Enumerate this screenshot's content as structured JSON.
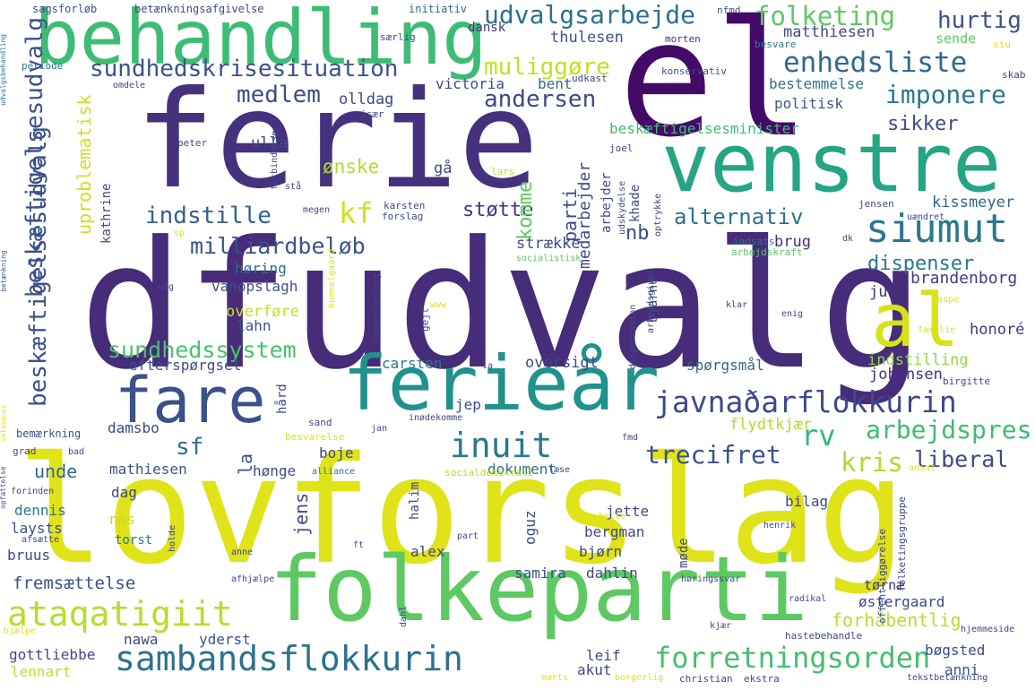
{
  "words": [
    {
      "text": "lovforslag",
      "color": "#dfe318"
    },
    {
      "text": "dfudvalg",
      "color": "#472c7a"
    },
    {
      "text": "ferie",
      "color": "#46317e"
    },
    {
      "text": "el",
      "color": "#440a68"
    },
    {
      "text": "behandling",
      "color": "#3ebc74"
    },
    {
      "text": "venstre",
      "color": "#25a584"
    },
    {
      "text": "folkeparti",
      "color": "#5ec962"
    },
    {
      "text": "ferieår",
      "color": "#21918c"
    },
    {
      "text": "fare",
      "color": "#3b518b"
    },
    {
      "text": "al",
      "color": "#d8e219"
    },
    {
      "text": "sambandsflokkurin",
      "color": "#2c728e"
    },
    {
      "text": "javnaðarflokkurin",
      "color": "#3e4a89"
    },
    {
      "text": "siumut",
      "color": "#2a788e"
    },
    {
      "text": "udvalgsarbejde",
      "color": "#2c718e"
    },
    {
      "text": "folketing",
      "color": "#5ec962"
    },
    {
      "text": "enhedsliste",
      "color": "#31688e"
    },
    {
      "text": "sundhedskrisesituation",
      "color": "#3b528b"
    },
    {
      "text": "inuit",
      "color": "#2a788e"
    },
    {
      "text": "ataqatigiit",
      "color": "#b5de2b"
    },
    {
      "text": "forretningsorden",
      "color": "#44bf70"
    },
    {
      "text": "arbejdspres",
      "color": "#3dbc74"
    },
    {
      "text": "imponere",
      "color": "#2a778e"
    },
    {
      "text": "hurtig",
      "color": "#3b528b"
    },
    {
      "text": "medlem",
      "color": "#3e4c8a"
    },
    {
      "text": "andersen",
      "color": "#3f4889"
    },
    {
      "text": "muliggøre",
      "color": "#c2df23"
    },
    {
      "text": "indstille",
      "color": "#355f8d"
    },
    {
      "text": "milliardbeløb",
      "color": "#3b528b"
    },
    {
      "text": "alternativ",
      "color": "#2c728e"
    },
    {
      "text": "sundhedssystem",
      "color": "#4ac16d"
    },
    {
      "text": "trecifret",
      "color": "#3b528b"
    },
    {
      "text": "kris",
      "color": "#addc30"
    },
    {
      "text": "liberal",
      "color": "#3e4989"
    },
    {
      "text": "rv",
      "color": "#35b779"
    },
    {
      "text": "sf",
      "color": "#2d708e"
    },
    {
      "text": "kf",
      "color": "#cde11d"
    },
    {
      "text": "støtte",
      "color": "#46327e"
    },
    {
      "text": "nb",
      "color": "#3e4a89"
    },
    {
      "text": "sikker",
      "color": "#3e4c8a"
    },
    {
      "text": "politisk",
      "color": "#38598c"
    },
    {
      "text": "bestemmelse",
      "color": "#2c738e"
    },
    {
      "text": "beskæftigelsesminister",
      "color": "#3dbc74"
    },
    {
      "text": "kissmeyer",
      "color": "#32648e"
    },
    {
      "text": "dispenser",
      "color": "#2a778e"
    },
    {
      "text": "brandenborg",
      "color": "#443983"
    },
    {
      "text": "juhl",
      "color": "#472f7d"
    },
    {
      "text": "honoré",
      "color": "#463480"
    },
    {
      "text": "indstilling",
      "color": "#95d840"
    },
    {
      "text": "johansen",
      "color": "#46327e"
    },
    {
      "text": "spørgsmål",
      "color": "#31678e"
    },
    {
      "text": "oversigt",
      "color": "#3f4788"
    },
    {
      "text": "carsten",
      "color": "#2a778e"
    },
    {
      "text": "efterspørgsel",
      "color": "#3d4d8a"
    },
    {
      "text": "vanopslagh",
      "color": "#3b528b"
    },
    {
      "text": "lahn",
      "color": "#3b528b"
    },
    {
      "text": "høring",
      "color": "#2e6d8e"
    },
    {
      "text": "overføre",
      "color": "#c8e020"
    },
    {
      "text": "ulla",
      "color": "#3e4989"
    },
    {
      "text": "olldag",
      "color": "#3e4a89"
    },
    {
      "text": "victoria",
      "color": "#3d4d8a"
    },
    {
      "text": "bent",
      "color": "#2f6b8e"
    },
    {
      "text": "dansk",
      "color": "#46327e"
    },
    {
      "text": "thulesen",
      "color": "#3b528b"
    },
    {
      "text": "matthiesen",
      "color": "#3e4a89"
    },
    {
      "text": "sende",
      "color": "#5ec962"
    },
    {
      "text": "ønske",
      "color": "#addc30"
    },
    {
      "text": "gå",
      "color": "#3e4989"
    },
    {
      "text": "strække",
      "color": "#3e4989"
    },
    {
      "text": "brug",
      "color": "#472f7d"
    },
    {
      "text": "flydtkjær",
      "color": "#addc30"
    },
    {
      "text": "tørnæ",
      "color": "#46337f"
    },
    {
      "text": "østergaard",
      "color": "#3e4989"
    },
    {
      "text": "bøgsted",
      "color": "#3e4989"
    },
    {
      "text": "anni",
      "color": "#3b528b"
    },
    {
      "text": "akut",
      "color": "#3e4989"
    },
    {
      "text": "leif",
      "color": "#3e4989"
    },
    {
      "text": "yderst",
      "color": "#3b528b"
    },
    {
      "text": "nawa",
      "color": "#3e4989"
    },
    {
      "text": "gottliebbe",
      "color": "#3e4989"
    },
    {
      "text": "lennart",
      "color": "#bddf26"
    },
    {
      "text": "fremsættelse",
      "color": "#3b528b"
    },
    {
      "text": "bruus",
      "color": "#3e4989"
    },
    {
      "text": "laysts",
      "color": "#3b528b"
    },
    {
      "text": "dennis",
      "color": "#2a788e"
    },
    {
      "text": "dag",
      "color": "#3e4989"
    },
    {
      "text": "mathiesen",
      "color": "#3b528b"
    },
    {
      "text": "unde",
      "color": "#32658e"
    },
    {
      "text": "damsbo",
      "color": "#3e4989"
    },
    {
      "text": "hønge",
      "color": "#3e4989"
    },
    {
      "text": "boje",
      "color": "#3e4989"
    },
    {
      "text": "jep",
      "color": "#3e4989"
    },
    {
      "text": "dokument",
      "color": "#2c728e"
    },
    {
      "text": "bilag",
      "color": "#3e4989"
    },
    {
      "text": "jette",
      "color": "#3e4989"
    },
    {
      "text": "bergman",
      "color": "#3e4989"
    },
    {
      "text": "bjørn",
      "color": "#3e4989"
    },
    {
      "text": "alex",
      "color": "#3e4989"
    },
    {
      "text": "samira",
      "color": "#3e4989"
    },
    {
      "text": "dahlin",
      "color": "#3e4989"
    },
    {
      "text": "forhåbentlig",
      "color": "#b5de2b"
    },
    {
      "text": "nas",
      "color": "#bddf26"
    },
    {
      "text": "torst",
      "color": "#2c728e"
    },
    {
      "text": "sagsforløb",
      "color": "#3b528b"
    },
    {
      "text": "betænkningsafgivelse",
      "color": "#3e4989"
    },
    {
      "text": "initiativ",
      "color": "#31688e"
    },
    {
      "text": "nfmd",
      "color": "#3b528b"
    },
    {
      "text": "morten",
      "color": "#46327e"
    },
    {
      "text": "besvare",
      "color": "#2a788e"
    },
    {
      "text": "siu",
      "color": "#dfe318"
    },
    {
      "text": "skab",
      "color": "#3e4989"
    },
    {
      "text": "konservativ",
      "color": "#3b528b"
    },
    {
      "text": "udkast",
      "color": "#3e4989"
    },
    {
      "text": "særlig",
      "color": "#3e4989"
    },
    {
      "text": "periode",
      "color": "#2a788e"
    },
    {
      "text": "omdele",
      "color": "#3e4989"
    },
    {
      "text": "især",
      "color": "#3e4989"
    },
    {
      "text": "peter",
      "color": "#3e4989"
    },
    {
      "text": "joel",
      "color": "#3e4989"
    },
    {
      "text": "lars",
      "color": "#bddf26"
    },
    {
      "text": "stå",
      "color": "#3e4989"
    },
    {
      "text": "karsten",
      "color": "#3e4989"
    },
    {
      "text": "forslag",
      "color": "#3e4989"
    },
    {
      "text": "megen",
      "color": "#3e4989"
    },
    {
      "text": "jensen",
      "color": "#3e4989"
    },
    {
      "text": "uændret",
      "color": "#3e4989"
    },
    {
      "text": "indsats",
      "color": "#2a788e"
    },
    {
      "text": "arbejdskraft",
      "color": "#5ec962"
    },
    {
      "text": "socialistisk",
      "color": "#5ec962"
    },
    {
      "text": "sp",
      "color": "#dfe318"
    },
    {
      "text": "ufg",
      "color": "#3e4989"
    },
    {
      "text": "www",
      "color": "#dfe318"
    },
    {
      "text": "enig",
      "color": "#3e4989"
    },
    {
      "text": "klar",
      "color": "#3e4989"
    },
    {
      "text": "kaspe",
      "color": "#dfe318"
    },
    {
      "text": "familie",
      "color": "#dfe318"
    },
    {
      "text": "bemærkning",
      "color": "#3b528b"
    },
    {
      "text": "ia",
      "color": "#3e4989"
    },
    {
      "text": "sand",
      "color": "#3e4989"
    },
    {
      "text": "jan",
      "color": "#3e4989"
    },
    {
      "text": "inødekomme",
      "color": "#3e4989"
    },
    {
      "text": "birgitte",
      "color": "#3e4989"
    },
    {
      "text": "grad",
      "color": "#3e4989"
    },
    {
      "text": "bad",
      "color": "#3e4989"
    },
    {
      "text": "besvarelse",
      "color": "#dfe318"
    },
    {
      "text": "alliance",
      "color": "#2c728e"
    },
    {
      "text": "socialdemokrati",
      "color": "#b5de2b"
    },
    {
      "text": "læse",
      "color": "#3e4989"
    },
    {
      "text": "ansat",
      "color": "#dfe318"
    },
    {
      "text": "fmd",
      "color": "#3e4989"
    },
    {
      "text": "forinden",
      "color": "#3e4989"
    },
    {
      "text": "afsætte",
      "color": "#3e4989"
    },
    {
      "text": "henrik",
      "color": "#3e4989"
    },
    {
      "text": "helle",
      "color": "#dfe318"
    },
    {
      "text": "part",
      "color": "#3e4989"
    },
    {
      "text": "anne",
      "color": "#3e4989"
    },
    {
      "text": "ft",
      "color": "#3e4989"
    },
    {
      "text": "afhjælpe",
      "color": "#3e4989"
    },
    {
      "text": "høringssvar",
      "color": "#3e4989"
    },
    {
      "text": "radikal",
      "color": "#3e4989"
    },
    {
      "text": "hjælpe",
      "color": "#dfe318"
    },
    {
      "text": "kjær",
      "color": "#3e4989"
    },
    {
      "text": "hastebehandle",
      "color": "#3e4989"
    },
    {
      "text": "hjemmeside",
      "color": "#3e4989"
    },
    {
      "text": "marts",
      "color": "#dfe318"
    },
    {
      "text": "borgerlig",
      "color": "#dfe318"
    },
    {
      "text": "christian",
      "color": "#3e4989"
    },
    {
      "text": "ekstra",
      "color": "#3e4989"
    },
    {
      "text": "tekstbetænkning",
      "color": "#3e4989"
    },
    {
      "text": "udvalgsbehandling",
      "color": "#2a788e"
    },
    {
      "text": "betænkning",
      "color": "#3b528b"
    },
    {
      "text": "beskæftigelsesudvalg",
      "color": "#3b528b"
    },
    {
      "text": "uproblematisk",
      "color": "#cde11d"
    },
    {
      "text": "beskæftigelsesudvalg",
      "color": "#3b528b"
    },
    {
      "text": "opfattelse",
      "color": "#3e4989"
    },
    {
      "text": "velasquez",
      "color": "#dfe318"
    },
    {
      "text": "jens",
      "color": "#3e4989"
    },
    {
      "text": "la",
      "color": "#3b528b"
    },
    {
      "text": "hård",
      "color": "#3e4989"
    },
    {
      "text": "halim",
      "color": "#3e4989"
    },
    {
      "text": "gejl",
      "color": "#3e4989"
    },
    {
      "text": "oguz",
      "color": "#3e4989"
    },
    {
      "text": "møde",
      "color": "#3e4989"
    },
    {
      "text": "komme",
      "color": "#5ec962"
    },
    {
      "text": "parti",
      "color": "#3e4989"
    },
    {
      "text": "medarbejder",
      "color": "#3e4989"
    },
    {
      "text": "arbejder",
      "color": "#3e4989"
    },
    {
      "text": "khade",
      "color": "#3e4989"
    },
    {
      "text": "bjarne",
      "color": "#3e4989"
    },
    {
      "text": "kathrine",
      "color": "#3e4989"
    },
    {
      "text": "forbindelse",
      "color": "#3e4989"
    },
    {
      "text": "hummelgaard",
      "color": "#dfe318"
    },
    {
      "text": "sammensætning",
      "color": "#3e4989"
    },
    {
      "text": "arbejdsgiver",
      "color": "#3e4989"
    },
    {
      "text": "udskydelse",
      "color": "#3e4989"
    },
    {
      "text": "optrykke",
      "color": "#3e4989"
    },
    {
      "text": "dispensation",
      "color": "#3e4989"
    },
    {
      "text": "holde",
      "color": "#3e4989"
    },
    {
      "text": "dahl",
      "color": "#3e4989"
    },
    {
      "text": "offentliggørelse",
      "color": "#3e4989"
    },
    {
      "text": "folketingsgruppe",
      "color": "#3e4989"
    },
    {
      "text": "dk",
      "color": "#3e4989"
    }
  ]
}
